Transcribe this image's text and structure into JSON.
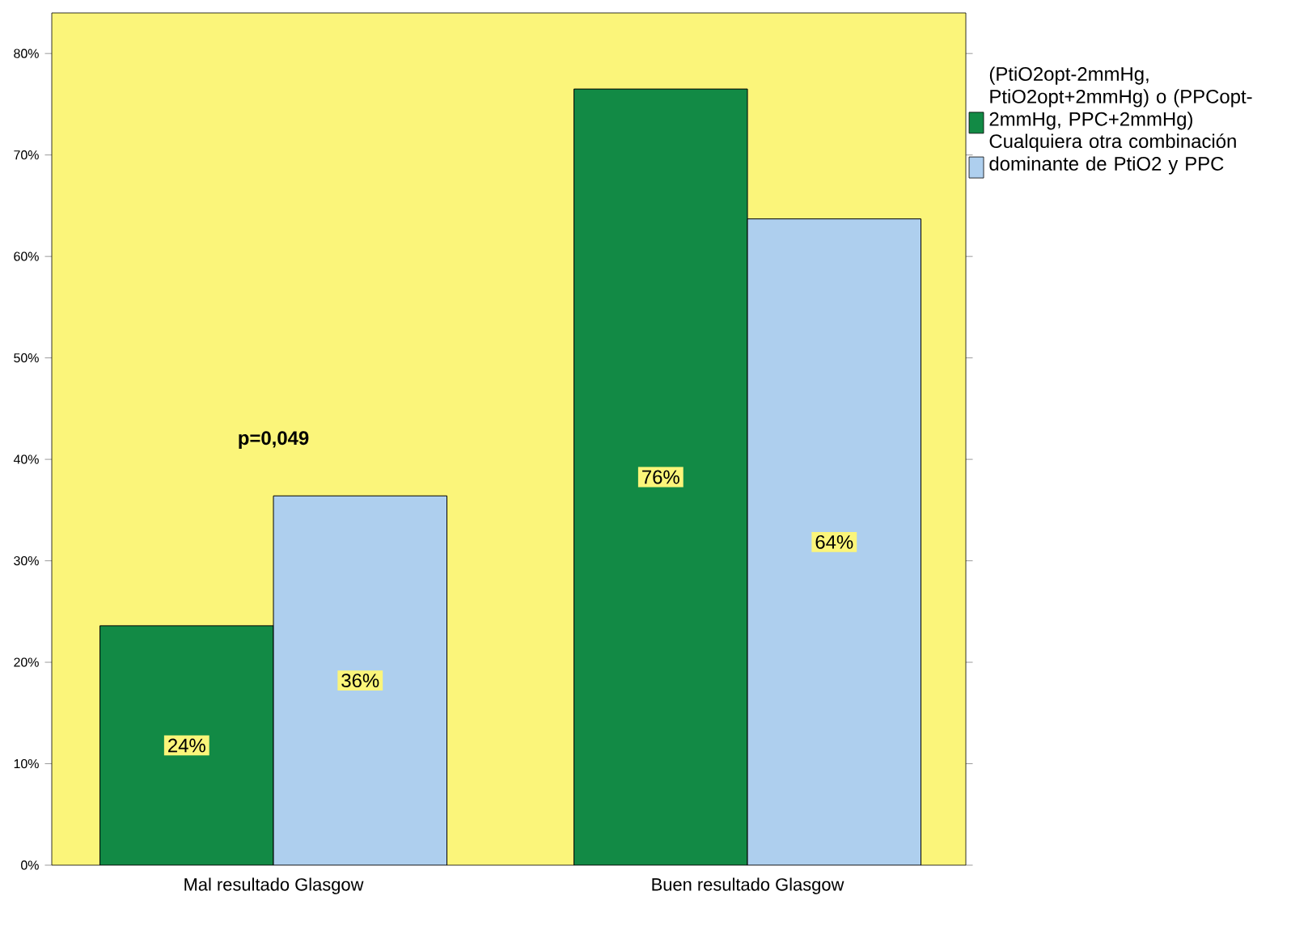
{
  "chart_data": {
    "type": "bar",
    "categories": [
      "Mal resultado Glasgow",
      "Buen resultado Glasgow"
    ],
    "series": [
      {
        "name": "(PtiO2opt-2mmHg, PtiO2opt+2mmHg) o (PPCopt-2mmHg, PPC+2mmHg)",
        "color": "#128a45",
        "values": [
          23.6,
          76.5
        ],
        "value_labels": [
          "24%",
          "76%"
        ]
      },
      {
        "name": "Cualquiera otra combinación dominante de PtiO2 y PPC",
        "color": "#aecfee",
        "values": [
          36.4,
          63.7
        ],
        "value_labels": [
          "36%",
          "64%"
        ]
      }
    ],
    "ylim": [
      0,
      84
    ],
    "yticks": [
      {
        "value": 0,
        "label": "0%"
      },
      {
        "value": 10,
        "label": "10%"
      },
      {
        "value": 20,
        "label": "20%"
      },
      {
        "value": 30,
        "label": "30%"
      },
      {
        "value": 40,
        "label": "40%"
      },
      {
        "value": 50,
        "label": "50%"
      },
      {
        "value": 60,
        "label": "60%"
      },
      {
        "value": 70,
        "label": "70%"
      },
      {
        "value": 80,
        "label": "80%"
      }
    ],
    "annotations": [
      "p=0,049"
    ],
    "legend": "right",
    "grid": false
  }
}
